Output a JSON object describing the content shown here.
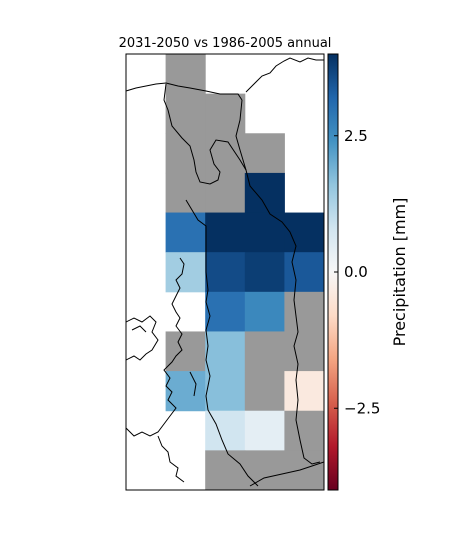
{
  "chart_data": {
    "type": "heatmap",
    "title": "2031-2050 vs 1986-2005 annual",
    "colorbar": {
      "label": "Precipitation [mm]",
      "range": [
        -4.0,
        4.0
      ],
      "ticks": [
        2.5,
        0.0,
        -2.5
      ],
      "tick_labels": [
        "2.5",
        "0.0",
        "−2.5"
      ],
      "colormap": "RdBu (red negative, blue positive)"
    },
    "grid": {
      "rows": 11,
      "cols": 5,
      "row_order": "top-to-bottom",
      "col_order": "left-to-right"
    },
    "missing_value_color": "#999999",
    "values": [
      [
        null,
        "nodata",
        null,
        null,
        null
      ],
      [
        null,
        "nodata",
        "nodata",
        null,
        null
      ],
      [
        null,
        "nodata",
        "nodata",
        "nodata",
        null
      ],
      [
        null,
        "nodata",
        "nodata",
        4.0,
        null
      ],
      [
        null,
        3.0,
        4.0,
        4.0,
        4.0
      ],
      [
        null,
        1.4,
        3.6,
        3.8,
        3.4
      ],
      [
        null,
        null,
        3.0,
        2.6,
        "nodata"
      ],
      [
        null,
        "nodata",
        1.7,
        "nodata",
        "nodata"
      ],
      [
        null,
        2.0,
        1.7,
        "nodata",
        -0.4
      ],
      [
        null,
        null,
        0.8,
        0.4,
        "nodata"
      ],
      [
        null,
        null,
        "nodata",
        "nodata",
        "nodata"
      ]
    ],
    "blank_top_left_cells": [
      [
        0,
        0
      ],
      [
        1,
        0
      ],
      [
        0,
        1
      ]
    ]
  }
}
